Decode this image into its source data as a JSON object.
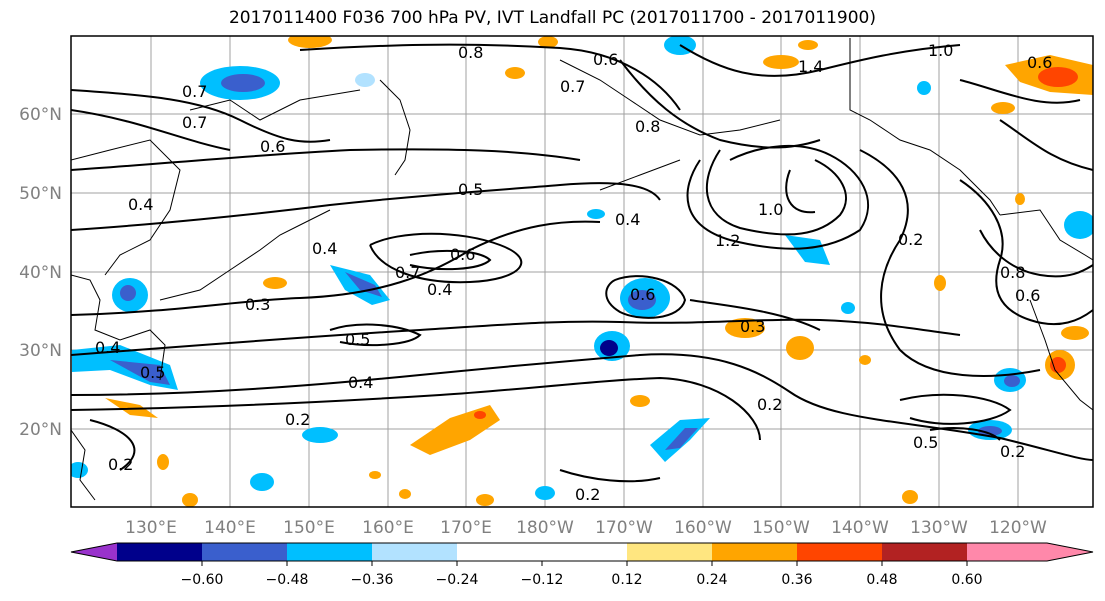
{
  "title": "2017011400 F036 700 hPa PV, IVT Landfall PC (2017011700 - 2017011900)",
  "map": {
    "lon_ticks": [
      "130°E",
      "140°E",
      "150°E",
      "160°E",
      "170°E",
      "180°W",
      "170°W",
      "160°W",
      "150°W",
      "140°W",
      "130°W",
      "120°W"
    ],
    "lat_ticks": [
      "60°N",
      "50°N",
      "40°N",
      "30°N",
      "20°N"
    ],
    "contour_labels": [
      "0.8",
      "0.6",
      "0.7",
      "1.4",
      "1.0",
      "0.6",
      "0.7",
      "0.7",
      "0.6",
      "0.8",
      "0.4",
      "0.5",
      "0.4",
      "1.0",
      "1.2",
      "0.2",
      "0.4",
      "0.7",
      "0.6",
      "0.4",
      "0.6",
      "0.8",
      "0.6",
      "0.3",
      "0.3",
      "0.5",
      "0.4",
      "0.5",
      "0.4",
      "0.2",
      "0.2",
      "0.5",
      "0.2",
      "0.2",
      "0.2"
    ]
  },
  "colorbar": {
    "tick_labels": [
      "−0.60",
      "−0.48",
      "−0.36",
      "−0.24",
      "−0.12",
      "0.12",
      "0.24",
      "0.36",
      "0.48",
      "0.60"
    ],
    "colors": {
      "extend_low": "#9932cc",
      "bin1": "#00008b",
      "bin2": "#3a5fcd",
      "bin3": "#00bfff",
      "bin4": "#b2e2ff",
      "bin5": "#ffffff",
      "bin6": "#ffe680",
      "bin7": "#ffa500",
      "bin8": "#ff4500",
      "bin9": "#b22222",
      "extend_high": "#ff88aa"
    }
  }
}
